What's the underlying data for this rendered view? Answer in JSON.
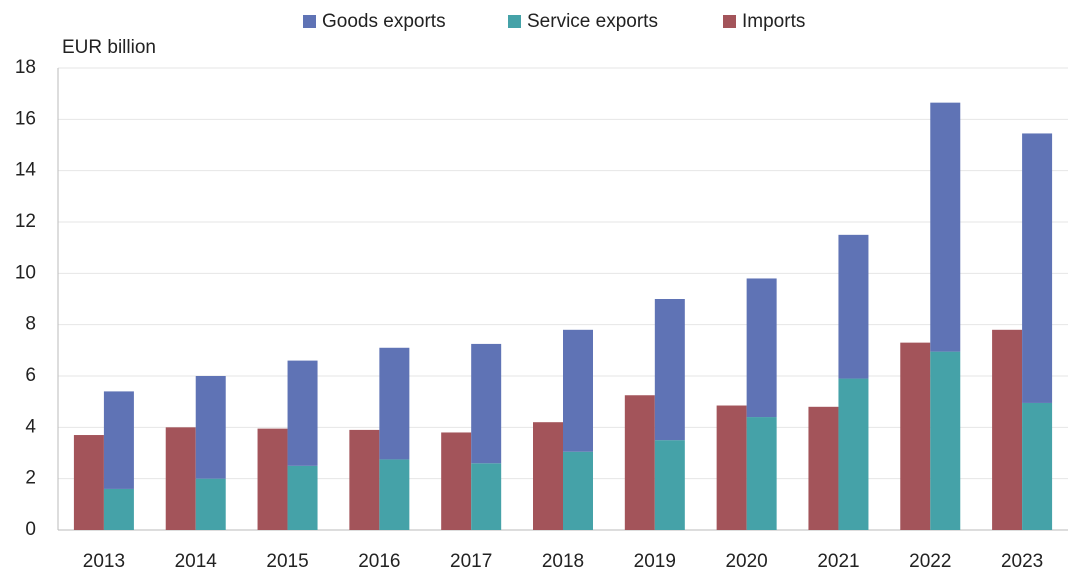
{
  "chart_data": {
    "type": "bar",
    "y_label": "EUR billion",
    "categories": [
      "2013",
      "2014",
      "2015",
      "2016",
      "2017",
      "2018",
      "2019",
      "2020",
      "2021",
      "2022",
      "2023"
    ],
    "series": [
      {
        "name": "Goods exports",
        "color": "#5f73b5",
        "values": [
          3.8,
          4.0,
          4.1,
          4.35,
          4.65,
          4.75,
          5.5,
          5.4,
          5.6,
          9.7,
          10.5
        ]
      },
      {
        "name": "Service exports",
        "color": "#45a2a8",
        "values": [
          1.6,
          2.0,
          2.5,
          2.75,
          2.6,
          3.05,
          3.5,
          4.4,
          5.9,
          6.95,
          4.95
        ]
      },
      {
        "name": "Imports",
        "color": "#a3545a",
        "values": [
          3.7,
          4.0,
          3.95,
          3.9,
          3.8,
          4.2,
          5.25,
          4.85,
          4.8,
          7.3,
          7.8
        ]
      }
    ],
    "ylim": [
      0,
      18
    ],
    "yticks": [
      0,
      2,
      4,
      6,
      8,
      10,
      12,
      14,
      16,
      18
    ],
    "grid": true
  }
}
